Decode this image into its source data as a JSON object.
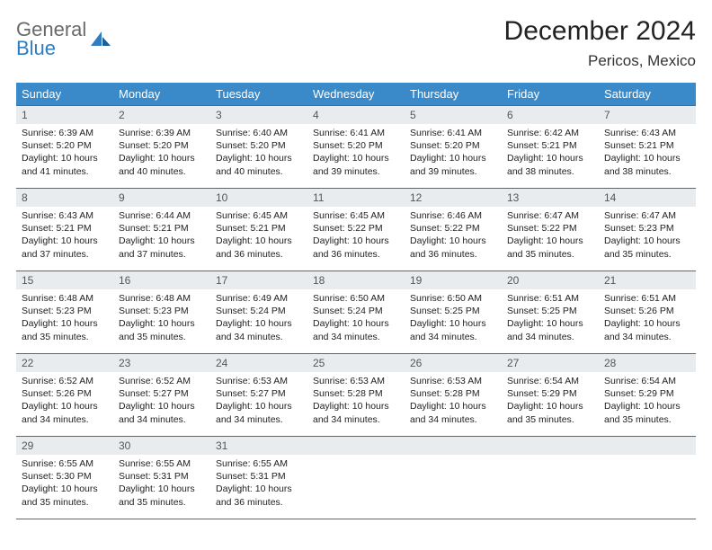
{
  "brand": {
    "line1": "General",
    "line2": "Blue",
    "color_gray": "#6a6a6a",
    "color_blue": "#2f7cc0"
  },
  "title": "December 2024",
  "location": "Pericos, Mexico",
  "header_bg": "#3a89c9",
  "header_fg": "#ffffff",
  "daynum_bg": "#e9ecef",
  "rule_color": "#3a6ea5",
  "weekdays": [
    "Sunday",
    "Monday",
    "Tuesday",
    "Wednesday",
    "Thursday",
    "Friday",
    "Saturday"
  ],
  "weeks": [
    [
      {
        "n": "1",
        "sunrise": "6:39 AM",
        "sunset": "5:20 PM",
        "daylight": "10 hours and 41 minutes."
      },
      {
        "n": "2",
        "sunrise": "6:39 AM",
        "sunset": "5:20 PM",
        "daylight": "10 hours and 40 minutes."
      },
      {
        "n": "3",
        "sunrise": "6:40 AM",
        "sunset": "5:20 PM",
        "daylight": "10 hours and 40 minutes."
      },
      {
        "n": "4",
        "sunrise": "6:41 AM",
        "sunset": "5:20 PM",
        "daylight": "10 hours and 39 minutes."
      },
      {
        "n": "5",
        "sunrise": "6:41 AM",
        "sunset": "5:20 PM",
        "daylight": "10 hours and 39 minutes."
      },
      {
        "n": "6",
        "sunrise": "6:42 AM",
        "sunset": "5:21 PM",
        "daylight": "10 hours and 38 minutes."
      },
      {
        "n": "7",
        "sunrise": "6:43 AM",
        "sunset": "5:21 PM",
        "daylight": "10 hours and 38 minutes."
      }
    ],
    [
      {
        "n": "8",
        "sunrise": "6:43 AM",
        "sunset": "5:21 PM",
        "daylight": "10 hours and 37 minutes."
      },
      {
        "n": "9",
        "sunrise": "6:44 AM",
        "sunset": "5:21 PM",
        "daylight": "10 hours and 37 minutes."
      },
      {
        "n": "10",
        "sunrise": "6:45 AM",
        "sunset": "5:21 PM",
        "daylight": "10 hours and 36 minutes."
      },
      {
        "n": "11",
        "sunrise": "6:45 AM",
        "sunset": "5:22 PM",
        "daylight": "10 hours and 36 minutes."
      },
      {
        "n": "12",
        "sunrise": "6:46 AM",
        "sunset": "5:22 PM",
        "daylight": "10 hours and 36 minutes."
      },
      {
        "n": "13",
        "sunrise": "6:47 AM",
        "sunset": "5:22 PM",
        "daylight": "10 hours and 35 minutes."
      },
      {
        "n": "14",
        "sunrise": "6:47 AM",
        "sunset": "5:23 PM",
        "daylight": "10 hours and 35 minutes."
      }
    ],
    [
      {
        "n": "15",
        "sunrise": "6:48 AM",
        "sunset": "5:23 PM",
        "daylight": "10 hours and 35 minutes."
      },
      {
        "n": "16",
        "sunrise": "6:48 AM",
        "sunset": "5:23 PM",
        "daylight": "10 hours and 35 minutes."
      },
      {
        "n": "17",
        "sunrise": "6:49 AM",
        "sunset": "5:24 PM",
        "daylight": "10 hours and 34 minutes."
      },
      {
        "n": "18",
        "sunrise": "6:50 AM",
        "sunset": "5:24 PM",
        "daylight": "10 hours and 34 minutes."
      },
      {
        "n": "19",
        "sunrise": "6:50 AM",
        "sunset": "5:25 PM",
        "daylight": "10 hours and 34 minutes."
      },
      {
        "n": "20",
        "sunrise": "6:51 AM",
        "sunset": "5:25 PM",
        "daylight": "10 hours and 34 minutes."
      },
      {
        "n": "21",
        "sunrise": "6:51 AM",
        "sunset": "5:26 PM",
        "daylight": "10 hours and 34 minutes."
      }
    ],
    [
      {
        "n": "22",
        "sunrise": "6:52 AM",
        "sunset": "5:26 PM",
        "daylight": "10 hours and 34 minutes."
      },
      {
        "n": "23",
        "sunrise": "6:52 AM",
        "sunset": "5:27 PM",
        "daylight": "10 hours and 34 minutes."
      },
      {
        "n": "24",
        "sunrise": "6:53 AM",
        "sunset": "5:27 PM",
        "daylight": "10 hours and 34 minutes."
      },
      {
        "n": "25",
        "sunrise": "6:53 AM",
        "sunset": "5:28 PM",
        "daylight": "10 hours and 34 minutes."
      },
      {
        "n": "26",
        "sunrise": "6:53 AM",
        "sunset": "5:28 PM",
        "daylight": "10 hours and 34 minutes."
      },
      {
        "n": "27",
        "sunrise": "6:54 AM",
        "sunset": "5:29 PM",
        "daylight": "10 hours and 35 minutes."
      },
      {
        "n": "28",
        "sunrise": "6:54 AM",
        "sunset": "5:29 PM",
        "daylight": "10 hours and 35 minutes."
      }
    ],
    [
      {
        "n": "29",
        "sunrise": "6:55 AM",
        "sunset": "5:30 PM",
        "daylight": "10 hours and 35 minutes."
      },
      {
        "n": "30",
        "sunrise": "6:55 AM",
        "sunset": "5:31 PM",
        "daylight": "10 hours and 35 minutes."
      },
      {
        "n": "31",
        "sunrise": "6:55 AM",
        "sunset": "5:31 PM",
        "daylight": "10 hours and 36 minutes."
      },
      null,
      null,
      null,
      null
    ]
  ],
  "labels": {
    "sunrise": "Sunrise: ",
    "sunset": "Sunset: ",
    "daylight": "Daylight: "
  }
}
